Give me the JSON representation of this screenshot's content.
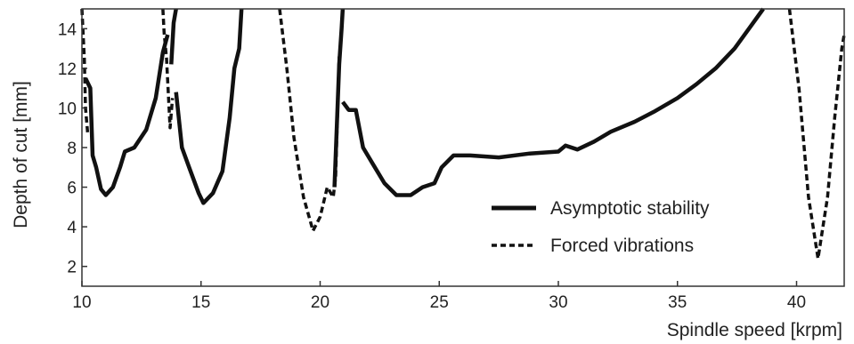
{
  "chart_data": {
    "type": "line",
    "xlabel": "Spindle speed [krpm]",
    "ylabel": "Depth of cut [mm]",
    "xlim": [
      10,
      42
    ],
    "ylim": [
      1,
      15
    ],
    "xticks": [
      "10",
      "15",
      "20",
      "25",
      "30",
      "35",
      "40"
    ],
    "yticks": [
      "2",
      "4",
      "6",
      "8",
      "10",
      "12",
      "14"
    ],
    "grid": false,
    "legend_position": "bottom-right",
    "series": [
      {
        "name": "Asymptotic stability",
        "style": "solid",
        "color": "#111111",
        "segments": [
          [
            [
              10.15,
              11.5
            ],
            [
              10.35,
              11.0
            ],
            [
              10.45,
              7.6
            ],
            [
              10.6,
              7.0
            ],
            [
              10.8,
              5.9
            ],
            [
              11.0,
              5.6
            ],
            [
              11.3,
              6.0
            ],
            [
              11.6,
              7.0
            ],
            [
              11.8,
              7.8
            ],
            [
              12.2,
              8.0
            ],
            [
              12.7,
              8.9
            ],
            [
              13.1,
              10.5
            ],
            [
              13.4,
              12.8
            ],
            [
              13.6,
              13.7
            ]
          ],
          [
            [
              13.75,
              12.2
            ],
            [
              13.85,
              14.3
            ],
            [
              13.95,
              15.0
            ]
          ],
          [
            [
              13.95,
              10.8
            ],
            [
              14.2,
              8.0
            ],
            [
              14.5,
              7.0
            ],
            [
              14.9,
              5.7
            ],
            [
              15.1,
              5.2
            ],
            [
              15.5,
              5.7
            ],
            [
              15.9,
              6.8
            ],
            [
              16.2,
              9.5
            ],
            [
              16.4,
              12.0
            ],
            [
              16.6,
              13.0
            ],
            [
              16.7,
              15.0
            ]
          ],
          [
            [
              20.6,
              6.0
            ],
            [
              20.8,
              12.2
            ],
            [
              20.9,
              14.0
            ],
            [
              20.95,
              15.0
            ]
          ],
          [
            [
              20.95,
              10.3
            ],
            [
              21.2,
              9.9
            ],
            [
              21.5,
              9.9
            ],
            [
              21.8,
              8.0
            ],
            [
              22.2,
              7.2
            ],
            [
              22.7,
              6.2
            ],
            [
              23.2,
              5.6
            ],
            [
              23.8,
              5.6
            ],
            [
              24.3,
              6.0
            ],
            [
              24.8,
              6.2
            ],
            [
              25.1,
              7.0
            ],
            [
              25.6,
              7.6
            ],
            [
              26.3,
              7.6
            ],
            [
              27.5,
              7.5
            ],
            [
              28.8,
              7.7
            ],
            [
              30.0,
              7.8
            ],
            [
              30.3,
              8.1
            ],
            [
              30.8,
              7.9
            ],
            [
              31.5,
              8.3
            ],
            [
              32.2,
              8.8
            ],
            [
              33.2,
              9.3
            ],
            [
              34.0,
              9.8
            ],
            [
              35.0,
              10.5
            ],
            [
              35.8,
              11.2
            ],
            [
              36.6,
              12.0
            ],
            [
              37.4,
              13.0
            ],
            [
              38.0,
              14.0
            ],
            [
              38.6,
              15.0
            ]
          ]
        ]
      },
      {
        "name": "Forced vibrations",
        "style": "dashed",
        "color": "#111111",
        "segments": [
          [
            [
              10.0,
              15.0
            ],
            [
              10.1,
              12.5
            ],
            [
              10.15,
              10.0
            ],
            [
              10.25,
              8.6
            ]
          ],
          [
            [
              13.4,
              15.0
            ],
            [
              13.45,
              13.8
            ],
            [
              13.55,
              12.5
            ],
            [
              13.7,
              9.0
            ],
            [
              13.8,
              10.5
            ]
          ],
          [
            [
              18.3,
              15.0
            ],
            [
              18.6,
              12.0
            ],
            [
              18.9,
              8.5
            ],
            [
              19.3,
              5.5
            ],
            [
              19.7,
              3.8
            ],
            [
              20.0,
              4.5
            ],
            [
              20.3,
              6.0
            ],
            [
              20.55,
              5.5
            ],
            [
              20.65,
              6.5
            ],
            [
              20.8,
              12.6
            ]
          ],
          [
            [
              39.7,
              15.0
            ],
            [
              40.1,
              11.0
            ],
            [
              40.5,
              5.5
            ],
            [
              40.9,
              2.4
            ],
            [
              41.3,
              5.5
            ],
            [
              41.6,
              9.5
            ],
            [
              41.9,
              13.0
            ],
            [
              42.0,
              13.7
            ]
          ]
        ]
      }
    ]
  }
}
